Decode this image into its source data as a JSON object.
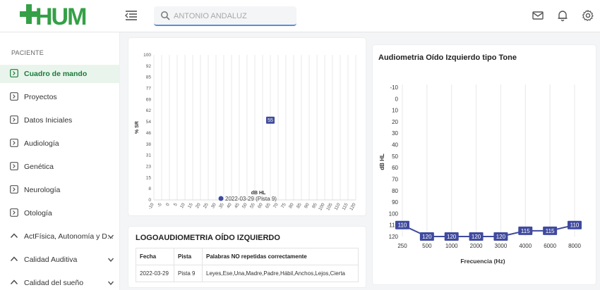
{
  "header": {
    "logo_text": "HUM",
    "search_placeholder": "ANTONIO ANDALUZ",
    "colors": {
      "logo_green": "#35a047",
      "accent_blue": "#5b8fd6"
    },
    "icons": [
      "menu-collapse-icon",
      "search-icon",
      "mail-icon",
      "bell-icon",
      "gear-icon"
    ]
  },
  "sidebar": {
    "section": "PACIENTE",
    "items": [
      {
        "label": "Cuadro de mando",
        "active": true
      },
      {
        "label": "Proyectos"
      },
      {
        "label": "Datos Iniciales"
      },
      {
        "label": "Audiología"
      },
      {
        "label": "Genética"
      },
      {
        "label": "Neurología"
      },
      {
        "label": "Otología"
      }
    ],
    "groups": [
      {
        "label": "ActFísica, Autonomía y D..."
      },
      {
        "label": "Calidad Auditiva"
      },
      {
        "label": "Calidad del sueño"
      }
    ]
  },
  "speech_chart": {
    "chart_data": {
      "type": "scatter",
      "title": "",
      "xlabel": "dB HL",
      "ylabel": "% SR",
      "x_ticks": [
        "-10",
        "-5",
        "0",
        "5",
        "10",
        "15",
        "20",
        "25",
        "30",
        "35",
        "40",
        "45",
        "50",
        "55",
        "60",
        "65",
        "70",
        "75",
        "80",
        "85",
        "90",
        "95",
        "100",
        "105",
        "110",
        "115",
        "120"
      ],
      "y_ticks": [
        "100",
        "92",
        "85",
        "77",
        "69",
        "62",
        "54",
        "46",
        "38",
        "31",
        "23",
        "15",
        "8",
        "0"
      ],
      "xlim": [
        -10,
        120
      ],
      "ylim": [
        0,
        100
      ],
      "legend_position": "bottom",
      "series": [
        {
          "name": "2022-03-29 (Pista 9)",
          "color": "#3f4a9e",
          "points": [
            {
              "x": 65,
              "y": 55,
              "label": "55"
            }
          ]
        }
      ]
    }
  },
  "logo_table": {
    "title": "LOGOAUDIOMETRIA OÍDO IZQUIERDO",
    "columns": [
      "Fecha",
      "Pista",
      "Palabras NO repetidas correctamente"
    ],
    "rows": [
      [
        "2022-03-29",
        "Pista 9",
        "Leyes,Ese,Una,Madre,Padre,Hábil,Anchos,Lejos,Cierta"
      ]
    ]
  },
  "tone_chart": {
    "title": "Audiometria Oído Izquierdo tipo Tone",
    "chart_data": {
      "type": "line",
      "xlabel": "Frecuencia (Hz)",
      "ylabel": "dB HL",
      "categories": [
        "250",
        "500",
        "1000",
        "2000",
        "3000",
        "4000",
        "6000",
        "8000"
      ],
      "y_ticks": [
        "-10",
        "0",
        "10",
        "20",
        "30",
        "40",
        "50",
        "60",
        "70",
        "80",
        "90",
        "100",
        "110",
        "120"
      ],
      "ylim": [
        -10,
        120
      ],
      "y_inverted": true,
      "series": [
        {
          "name": "",
          "color": "#3f4a9e",
          "values": [
            110,
            120,
            120,
            120,
            120,
            115,
            115,
            110
          ]
        }
      ]
    }
  }
}
